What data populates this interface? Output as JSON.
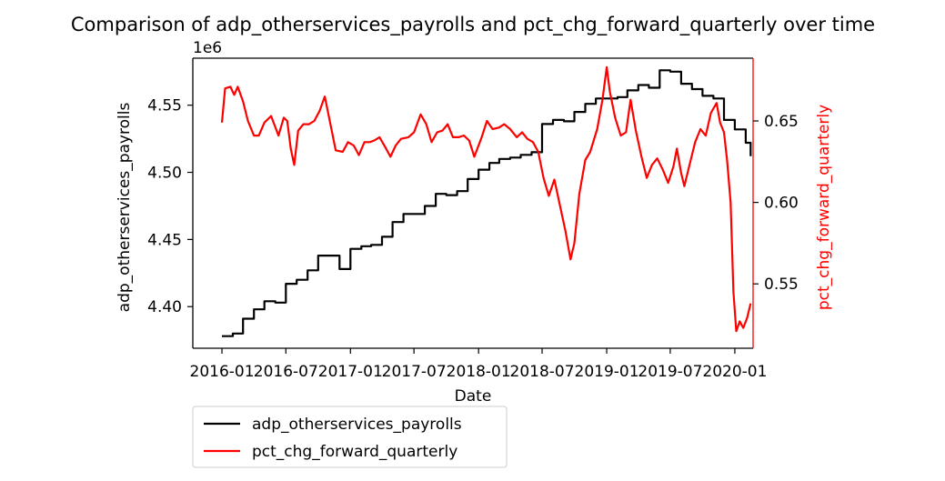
{
  "chart_data": {
    "type": "line",
    "title": "Comparison of adp_otherservices_payrolls and pct_chg_forward_quarterly over time",
    "xlabel": "Date",
    "ylabel_left": "adp_otherservices_payrolls",
    "ylabel_right": "pct_chg_forward_quarterly",
    "left_offset_label": "1e6",
    "x_ticks": [
      "2016-01",
      "2016-07",
      "2017-01",
      "2017-07",
      "2018-01",
      "2018-07",
      "2019-01",
      "2019-07",
      "2020-01"
    ],
    "y_left_ticks": [
      "4.40",
      "4.45",
      "4.50",
      "4.55"
    ],
    "y_right_ticks": [
      "0.55",
      "0.60",
      "0.65"
    ],
    "xlim": [
      "2015-10-10",
      "2020-02-22"
    ],
    "ylim_left": [
      4.369,
      4.585
    ],
    "ylim_right": [
      0.5105,
      0.6885
    ],
    "legend_position": "below-left",
    "colors": {
      "adp_otherservices_payrolls": "#000000",
      "pct_chg_forward_quarterly": "#ff0000"
    },
    "series": [
      {
        "name": "adp_otherservices_payrolls",
        "axis": "left",
        "unit_multiplier": 1000000,
        "step": true,
        "points": [
          [
            "2016-01-01",
            4.378
          ],
          [
            "2016-02-01",
            4.38
          ],
          [
            "2016-03-01",
            4.391
          ],
          [
            "2016-04-01",
            4.398
          ],
          [
            "2016-05-01",
            4.404
          ],
          [
            "2016-06-01",
            4.403
          ],
          [
            "2016-07-01",
            4.417
          ],
          [
            "2016-08-01",
            4.42
          ],
          [
            "2016-09-01",
            4.427
          ],
          [
            "2016-10-01",
            4.438
          ],
          [
            "2016-11-01",
            4.438
          ],
          [
            "2016-12-01",
            4.428
          ],
          [
            "2017-01-01",
            4.443
          ],
          [
            "2017-02-01",
            4.445
          ],
          [
            "2017-03-01",
            4.446
          ],
          [
            "2017-04-01",
            4.452
          ],
          [
            "2017-05-01",
            4.463
          ],
          [
            "2017-06-01",
            4.469
          ],
          [
            "2017-07-01",
            4.469
          ],
          [
            "2017-08-01",
            4.475
          ],
          [
            "2017-09-01",
            4.484
          ],
          [
            "2017-10-01",
            4.483
          ],
          [
            "2017-11-01",
            4.486
          ],
          [
            "2017-12-01",
            4.495
          ],
          [
            "2018-01-01",
            4.502
          ],
          [
            "2018-02-01",
            4.507
          ],
          [
            "2018-03-01",
            4.51
          ],
          [
            "2018-04-01",
            4.511
          ],
          [
            "2018-05-01",
            4.513
          ],
          [
            "2018-06-01",
            4.515
          ],
          [
            "2018-07-01",
            4.536
          ],
          [
            "2018-08-01",
            4.539
          ],
          [
            "2018-09-01",
            4.538
          ],
          [
            "2018-10-01",
            4.545
          ],
          [
            "2018-11-01",
            4.551
          ],
          [
            "2018-12-01",
            4.555
          ],
          [
            "2019-01-01",
            4.555
          ],
          [
            "2019-02-01",
            4.556
          ],
          [
            "2019-03-01",
            4.561
          ],
          [
            "2019-04-01",
            4.565
          ],
          [
            "2019-05-01",
            4.563
          ],
          [
            "2019-06-01",
            4.576
          ],
          [
            "2019-07-01",
            4.575
          ],
          [
            "2019-08-01",
            4.566
          ],
          [
            "2019-09-01",
            4.562
          ],
          [
            "2019-10-01",
            4.557
          ],
          [
            "2019-11-01",
            4.555
          ],
          [
            "2019-12-01",
            4.539
          ],
          [
            "2020-01-01",
            4.532
          ],
          [
            "2020-02-01",
            4.522
          ],
          [
            "2020-02-15",
            4.512
          ]
        ]
      },
      {
        "name": "pct_chg_forward_quarterly",
        "axis": "right",
        "step": false,
        "points": [
          [
            "2016-01-01",
            0.649
          ],
          [
            "2016-01-10",
            0.67
          ],
          [
            "2016-01-25",
            0.671
          ],
          [
            "2016-02-05",
            0.666
          ],
          [
            "2016-02-15",
            0.671
          ],
          [
            "2016-03-01",
            0.662
          ],
          [
            "2016-03-15",
            0.65
          ],
          [
            "2016-04-01",
            0.641
          ],
          [
            "2016-04-15",
            0.641
          ],
          [
            "2016-05-01",
            0.649
          ],
          [
            "2016-05-20",
            0.653
          ],
          [
            "2016-06-10",
            0.641
          ],
          [
            "2016-06-25",
            0.652
          ],
          [
            "2016-07-05",
            0.65
          ],
          [
            "2016-07-15",
            0.633
          ],
          [
            "2016-07-25",
            0.623
          ],
          [
            "2016-08-05",
            0.644
          ],
          [
            "2016-08-20",
            0.648
          ],
          [
            "2016-09-05",
            0.648
          ],
          [
            "2016-09-20",
            0.65
          ],
          [
            "2016-10-05",
            0.656
          ],
          [
            "2016-10-20",
            0.665
          ],
          [
            "2016-11-05",
            0.648
          ],
          [
            "2016-11-20",
            0.632
          ],
          [
            "2016-12-10",
            0.631
          ],
          [
            "2016-12-25",
            0.637
          ],
          [
            "2017-01-10",
            0.635
          ],
          [
            "2017-01-25",
            0.629
          ],
          [
            "2017-02-10",
            0.637
          ],
          [
            "2017-02-25",
            0.637
          ],
          [
            "2017-03-10",
            0.638
          ],
          [
            "2017-03-25",
            0.64
          ],
          [
            "2017-04-10",
            0.634
          ],
          [
            "2017-04-25",
            0.628
          ],
          [
            "2017-05-10",
            0.635
          ],
          [
            "2017-05-25",
            0.639
          ],
          [
            "2017-06-15",
            0.64
          ],
          [
            "2017-07-01",
            0.643
          ],
          [
            "2017-07-20",
            0.654
          ],
          [
            "2017-08-05",
            0.648
          ],
          [
            "2017-08-20",
            0.637
          ],
          [
            "2017-09-05",
            0.643
          ],
          [
            "2017-09-20",
            0.644
          ],
          [
            "2017-10-05",
            0.648
          ],
          [
            "2017-10-20",
            0.64
          ],
          [
            "2017-11-05",
            0.64
          ],
          [
            "2017-11-20",
            0.641
          ],
          [
            "2017-12-05",
            0.638
          ],
          [
            "2017-12-20",
            0.628
          ],
          [
            "2018-01-10",
            0.64
          ],
          [
            "2018-01-25",
            0.65
          ],
          [
            "2018-02-10",
            0.645
          ],
          [
            "2018-03-01",
            0.646
          ],
          [
            "2018-03-15",
            0.648
          ],
          [
            "2018-04-01",
            0.645
          ],
          [
            "2018-04-20",
            0.64
          ],
          [
            "2018-05-05",
            0.643
          ],
          [
            "2018-05-20",
            0.639
          ],
          [
            "2018-06-05",
            0.637
          ],
          [
            "2018-06-20",
            0.631
          ],
          [
            "2018-07-05",
            0.615
          ],
          [
            "2018-07-20",
            0.604
          ],
          [
            "2018-08-05",
            0.614
          ],
          [
            "2018-08-20",
            0.599
          ],
          [
            "2018-09-05",
            0.583
          ],
          [
            "2018-09-20",
            0.565
          ],
          [
            "2018-10-01",
            0.575
          ],
          [
            "2018-10-15",
            0.605
          ],
          [
            "2018-11-01",
            0.626
          ],
          [
            "2018-11-15",
            0.631
          ],
          [
            "2018-12-05",
            0.645
          ],
          [
            "2018-12-20",
            0.663
          ],
          [
            "2019-01-01",
            0.683
          ],
          [
            "2019-01-10",
            0.668
          ],
          [
            "2019-01-25",
            0.652
          ],
          [
            "2019-02-10",
            0.641
          ],
          [
            "2019-02-25",
            0.643
          ],
          [
            "2019-03-10",
            0.663
          ],
          [
            "2019-03-25",
            0.644
          ],
          [
            "2019-04-10",
            0.628
          ],
          [
            "2019-04-25",
            0.615
          ],
          [
            "2019-05-10",
            0.623
          ],
          [
            "2019-05-25",
            0.627
          ],
          [
            "2019-06-10",
            0.62
          ],
          [
            "2019-06-25",
            0.612
          ],
          [
            "2019-07-10",
            0.622
          ],
          [
            "2019-07-20",
            0.633
          ],
          [
            "2019-08-01",
            0.618
          ],
          [
            "2019-08-10",
            0.61
          ],
          [
            "2019-08-25",
            0.623
          ],
          [
            "2019-09-10",
            0.637
          ],
          [
            "2019-09-25",
            0.645
          ],
          [
            "2019-10-10",
            0.641
          ],
          [
            "2019-10-25",
            0.655
          ],
          [
            "2019-11-10",
            0.661
          ],
          [
            "2019-11-20",
            0.649
          ],
          [
            "2019-12-01",
            0.643
          ],
          [
            "2019-12-10",
            0.626
          ],
          [
            "2019-12-20",
            0.6
          ],
          [
            "2019-12-28",
            0.545
          ],
          [
            "2020-01-05",
            0.521
          ],
          [
            "2020-01-15",
            0.527
          ],
          [
            "2020-01-25",
            0.523
          ],
          [
            "2020-02-05",
            0.529
          ],
          [
            "2020-02-15",
            0.538
          ]
        ]
      }
    ]
  }
}
